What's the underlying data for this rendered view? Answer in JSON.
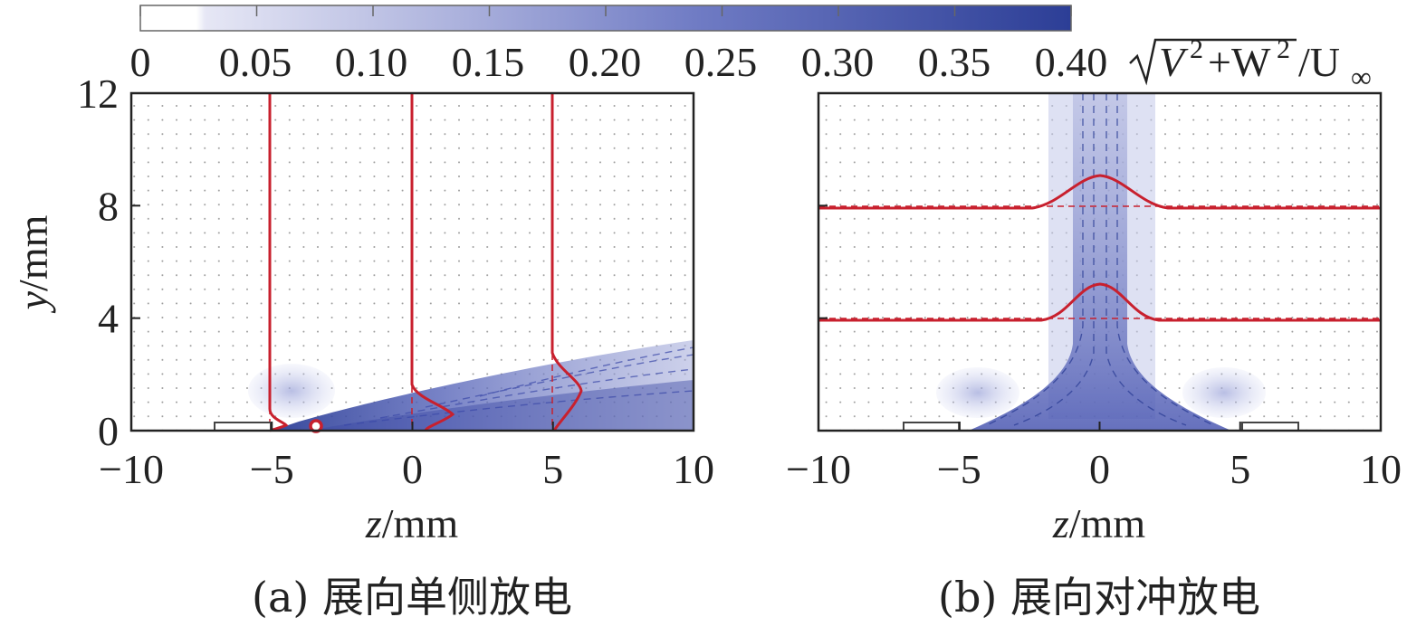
{
  "colorbar": {
    "ticks": [
      "0",
      "0.05",
      "0.10",
      "0.15",
      "0.20",
      "0.25",
      "0.30",
      "0.35",
      "0.40"
    ],
    "label_prefix": "V",
    "label_plus": "+W",
    "label_sup": "2",
    "label_suffix": "/U",
    "label_sub": "∞",
    "low_color": "#ffffff",
    "high_color": "#2c3e96"
  },
  "colors": {
    "profile": "#c8202e",
    "contour": "#3a48a8",
    "frame": "#222222"
  },
  "chart_data": [
    {
      "type": "heatmap",
      "xlabel_italic": "z",
      "xlabel_rest": "/mm",
      "ylabel_italic": "y",
      "ylabel_rest": "/mm",
      "xlim": [
        -10,
        10
      ],
      "ylim": [
        0,
        12
      ],
      "x_ticks": [
        "−10",
        "−5",
        "0",
        "5",
        "10"
      ],
      "y_ticks": [
        "0",
        "4",
        "8",
        "12"
      ],
      "caption": "(a) 展向单侧放电",
      "profile_stations_z": [
        -5,
        0,
        5
      ],
      "electrode_z": [
        -7,
        -5
      ],
      "marker": {
        "z": -3.4,
        "y": 0.15
      }
    },
    {
      "type": "heatmap",
      "xlabel_italic": "z",
      "xlabel_rest": "/mm",
      "x_ticks": [
        "−10",
        "−5",
        "0",
        "5",
        "10"
      ],
      "xlim": [
        -10,
        10
      ],
      "ylim": [
        0,
        12
      ],
      "caption": "(b) 展向对冲放电",
      "profile_stations_y": [
        4,
        8
      ],
      "electrodes_z": [
        [
          -7,
          -5
        ],
        [
          5,
          7
        ]
      ]
    }
  ]
}
